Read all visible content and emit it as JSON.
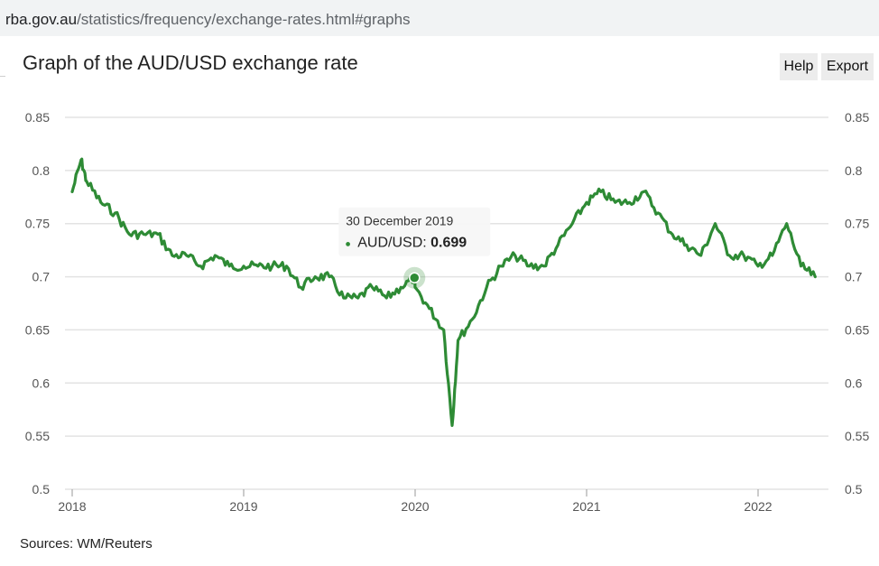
{
  "browser": {
    "url_domain": "rba.gov.au",
    "url_path": "/statistics/frequency/exchange-rates.html#graphs"
  },
  "header": {
    "title": "Graph of the AUD/USD exchange rate",
    "help_label": "Help",
    "export_label": "Export"
  },
  "footer": {
    "source": "Sources: WM/Reuters"
  },
  "colors": {
    "series": "#2e8b35",
    "grid": "#e3e3e3",
    "axis_text": "#555555",
    "tooltip_bg": "#f7f7f7"
  },
  "tooltip": {
    "date": "30 December 2019",
    "series_label": "AUD/USD: ",
    "value": "0.699"
  },
  "chart_data": {
    "type": "line",
    "title": "Graph of the AUD/USD exchange rate",
    "xlabel": "",
    "ylabel": "",
    "x_ticks": [
      "2018",
      "2019",
      "2020",
      "2021",
      "2022"
    ],
    "y_ticks": [
      "0.85",
      "0.8",
      "0.75",
      "0.7",
      "0.65",
      "0.6",
      "0.55",
      "0.5"
    ],
    "xlim": [
      "2018-01",
      "2022-05"
    ],
    "ylim": [
      0.5,
      0.85
    ],
    "grid": true,
    "dual_y_axis": true,
    "tooltip_point": {
      "x": "2019-12-30",
      "y": 0.699
    },
    "series": [
      {
        "name": "AUD/USD",
        "x": [
          "2018-01",
          "2018-01-20",
          "2018-02",
          "2018-03",
          "2018-04",
          "2018-05",
          "2018-06",
          "2018-07",
          "2018-08",
          "2018-09",
          "2018-10",
          "2018-11",
          "2018-12",
          "2019-01",
          "2019-02",
          "2019-03",
          "2019-04",
          "2019-05",
          "2019-06",
          "2019-07",
          "2019-08",
          "2019-09",
          "2019-10",
          "2019-11",
          "2019-12",
          "2019-12-30",
          "2020-01",
          "2020-02",
          "2020-03-01",
          "2020-03-19",
          "2020-04",
          "2020-05",
          "2020-06",
          "2020-07",
          "2020-08",
          "2020-09",
          "2020-10",
          "2020-11",
          "2020-12",
          "2021-01",
          "2021-02",
          "2021-03",
          "2021-04",
          "2021-05",
          "2021-06",
          "2021-07",
          "2021-08",
          "2021-09",
          "2021-10",
          "2021-11",
          "2021-12",
          "2022-01",
          "2022-02",
          "2022-03",
          "2022-04",
          "2022-05"
        ],
        "y": [
          0.78,
          0.81,
          0.79,
          0.77,
          0.76,
          0.74,
          0.74,
          0.74,
          0.72,
          0.72,
          0.71,
          0.72,
          0.71,
          0.71,
          0.71,
          0.71,
          0.71,
          0.69,
          0.7,
          0.7,
          0.68,
          0.68,
          0.69,
          0.68,
          0.69,
          0.699,
          0.69,
          0.67,
          0.65,
          0.56,
          0.64,
          0.66,
          0.69,
          0.71,
          0.72,
          0.71,
          0.71,
          0.73,
          0.75,
          0.77,
          0.78,
          0.77,
          0.77,
          0.78,
          0.76,
          0.74,
          0.73,
          0.72,
          0.75,
          0.72,
          0.72,
          0.71,
          0.72,
          0.75,
          0.71,
          0.7
        ]
      }
    ]
  }
}
